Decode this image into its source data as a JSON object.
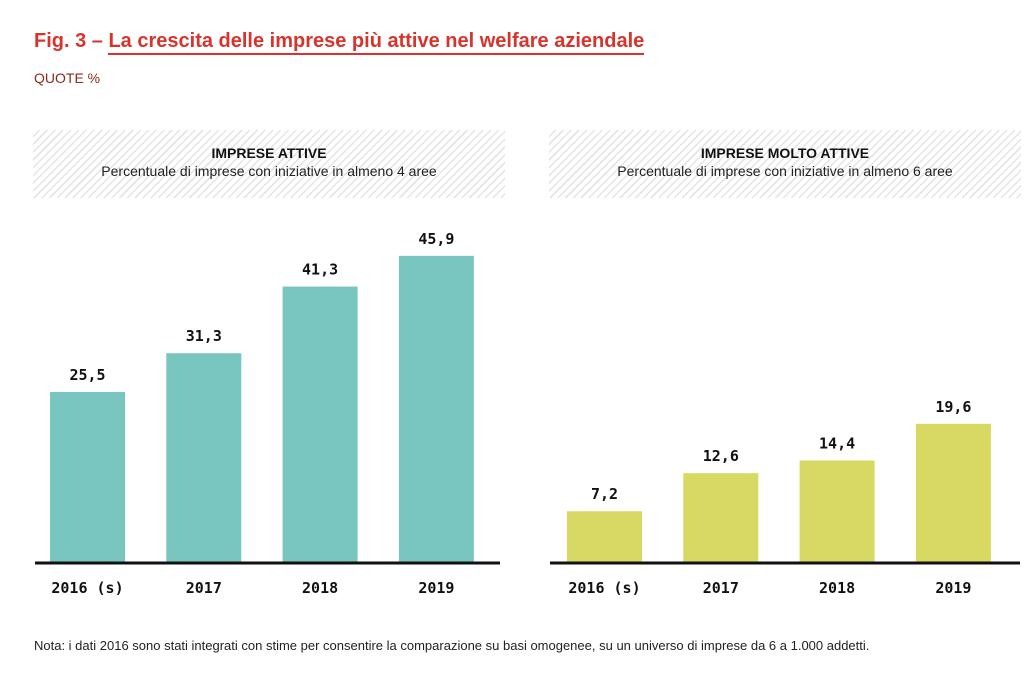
{
  "title_prefix": "Fig. 3 – ",
  "title": "La crescita delle imprese più attive nel welfare aziendale",
  "subtitle": "QUOTE %",
  "note": "Nota: i dati 2016 sono stati integrati con stime per consentire la comparazione su basi omogenee, su un universo di imprese da 6 a 1.000 addetti.",
  "chart_data": [
    {
      "type": "bar",
      "title": "IMPRESE ATTIVE",
      "subtitle": "Percentuale di imprese con iniziative in almeno 4 aree",
      "categories": [
        "2016 (s)",
        "2017",
        "2018",
        "2019"
      ],
      "values": [
        25.5,
        31.3,
        41.3,
        45.9
      ],
      "labels": [
        "25,5",
        "31,3",
        "41,3",
        "45,9"
      ],
      "color": "#78c6bf",
      "grid": false
    },
    {
      "type": "bar",
      "title": "IMPRESE MOLTO ATTIVE",
      "subtitle": "Percentuale di imprese con iniziative in almeno 6 aree",
      "categories": [
        "2016 (s)",
        "2017",
        "2018",
        "2019"
      ],
      "values": [
        7.2,
        12.6,
        14.4,
        19.6
      ],
      "labels": [
        "7,2",
        "12,6",
        "14,4",
        "19,6"
      ],
      "color": "#d7d962",
      "grid": false
    }
  ]
}
